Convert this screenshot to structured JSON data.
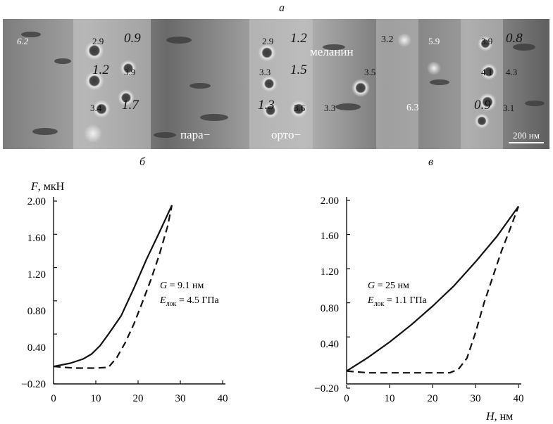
{
  "figure": {
    "panel_a_label": "а",
    "panel_b_label": "б",
    "panel_c_label": "в"
  },
  "micrograph": {
    "scale_bar": "200 нм",
    "labels": {
      "melanin": "меланин",
      "para": "пара−",
      "ortho": "орто−"
    },
    "values": [
      {
        "text": "6.2",
        "italic": true,
        "big": false
      },
      {
        "text": "2.9",
        "italic": false,
        "big": false
      },
      {
        "text": "0.9",
        "italic": true,
        "big": true
      },
      {
        "text": "2.9",
        "italic": false,
        "big": false
      },
      {
        "text": "1.2",
        "italic": true,
        "big": true
      },
      {
        "text": "3.2",
        "italic": false,
        "big": false
      },
      {
        "text": "5.9",
        "italic": false,
        "big": false
      },
      {
        "text": "3.9",
        "italic": false,
        "big": false
      },
      {
        "text": "0.8",
        "italic": true,
        "big": true
      },
      {
        "text": "1.2",
        "italic": true,
        "big": true
      },
      {
        "text": "3.9",
        "italic": false,
        "big": false
      },
      {
        "text": "3.3",
        "italic": false,
        "big": false
      },
      {
        "text": "1.5",
        "italic": true,
        "big": true
      },
      {
        "text": "3.5",
        "italic": false,
        "big": false
      },
      {
        "text": "4.1",
        "italic": false,
        "big": false
      },
      {
        "text": "4.3",
        "italic": false,
        "big": false
      },
      {
        "text": "3.4",
        "italic": false,
        "big": false
      },
      {
        "text": "1.7",
        "italic": true,
        "big": true
      },
      {
        "text": "1.3",
        "italic": true,
        "big": true
      },
      {
        "text": "3.6",
        "italic": false,
        "big": false
      },
      {
        "text": "3.3",
        "italic": false,
        "big": false
      },
      {
        "text": "6.3",
        "italic": false,
        "big": false
      },
      {
        "text": "0.9",
        "italic": true,
        "big": true
      },
      {
        "text": "3.1",
        "italic": false,
        "big": false
      }
    ]
  },
  "chart_data": [
    {
      "type": "line",
      "panel": "б",
      "xlabel": "",
      "ylabel_italic": "F",
      "ylabel_rest": ", мкН",
      "xlim": [
        0,
        40
      ],
      "ylim": [
        -0.2,
        2.0
      ],
      "x_ticks": [
        "0",
        "10",
        "20",
        "30",
        "40"
      ],
      "y_ticks": [
        "−0.20",
        "0.40",
        "0.80",
        "1.20",
        "1.60",
        "2.00"
      ],
      "y_tick_values": [
        -0.2,
        0.4,
        0.8,
        1.2,
        1.6,
        2.0
      ],
      "annotation": {
        "g_italic": "G",
        "g_value": " = 9.1 нм",
        "e_italic": "E",
        "e_sub": "лок",
        "e_value": " = 4.5 ГПа"
      },
      "series": [
        {
          "name": "loading",
          "style": "solid",
          "x": [
            0,
            4,
            7,
            9,
            11,
            13,
            16,
            19,
            22,
            25,
            28
          ],
          "y": [
            0.01,
            0.05,
            0.1,
            0.16,
            0.26,
            0.4,
            0.62,
            0.95,
            1.3,
            1.62,
            1.95
          ]
        },
        {
          "name": "unloading",
          "style": "dashed",
          "x": [
            0,
            5,
            10,
            13,
            15,
            17,
            19,
            21,
            23,
            25,
            27,
            28
          ],
          "y": [
            0.01,
            -0.01,
            -0.01,
            0.0,
            0.12,
            0.3,
            0.52,
            0.78,
            1.05,
            1.35,
            1.7,
            1.95
          ]
        }
      ]
    },
    {
      "type": "line",
      "panel": "в",
      "xlabel_italic": "H",
      "xlabel_rest": ", нм",
      "ylabel": "",
      "xlim": [
        0,
        40
      ],
      "ylim": [
        -0.2,
        2.0
      ],
      "x_ticks": [
        "0",
        "10",
        "20",
        "30",
        "40"
      ],
      "y_ticks": [
        "−0.20",
        "0.40",
        "0.80",
        "1.20",
        "1.60",
        "2.00"
      ],
      "y_tick_values": [
        -0.2,
        0.4,
        0.8,
        1.2,
        1.6,
        2.0
      ],
      "annotation": {
        "g_italic": "G",
        "g_value": " = 25 нм",
        "e_italic": "E",
        "e_sub": "лок",
        "e_value": " = 1.1 ГПа"
      },
      "series": [
        {
          "name": "loading",
          "style": "solid",
          "x": [
            0,
            5,
            10,
            15,
            20,
            25,
            30,
            35,
            40
          ],
          "y": [
            0.0,
            0.16,
            0.34,
            0.54,
            0.76,
            1.0,
            1.28,
            1.58,
            1.93
          ]
        },
        {
          "name": "unloading",
          "style": "dashed",
          "x": [
            0,
            5,
            10,
            15,
            20,
            24,
            26,
            28,
            30,
            32,
            34,
            36,
            38,
            40
          ],
          "y": [
            0.0,
            -0.02,
            -0.02,
            -0.02,
            -0.02,
            -0.02,
            0.02,
            0.15,
            0.45,
            0.8,
            1.1,
            1.4,
            1.66,
            1.93
          ]
        }
      ]
    }
  ]
}
